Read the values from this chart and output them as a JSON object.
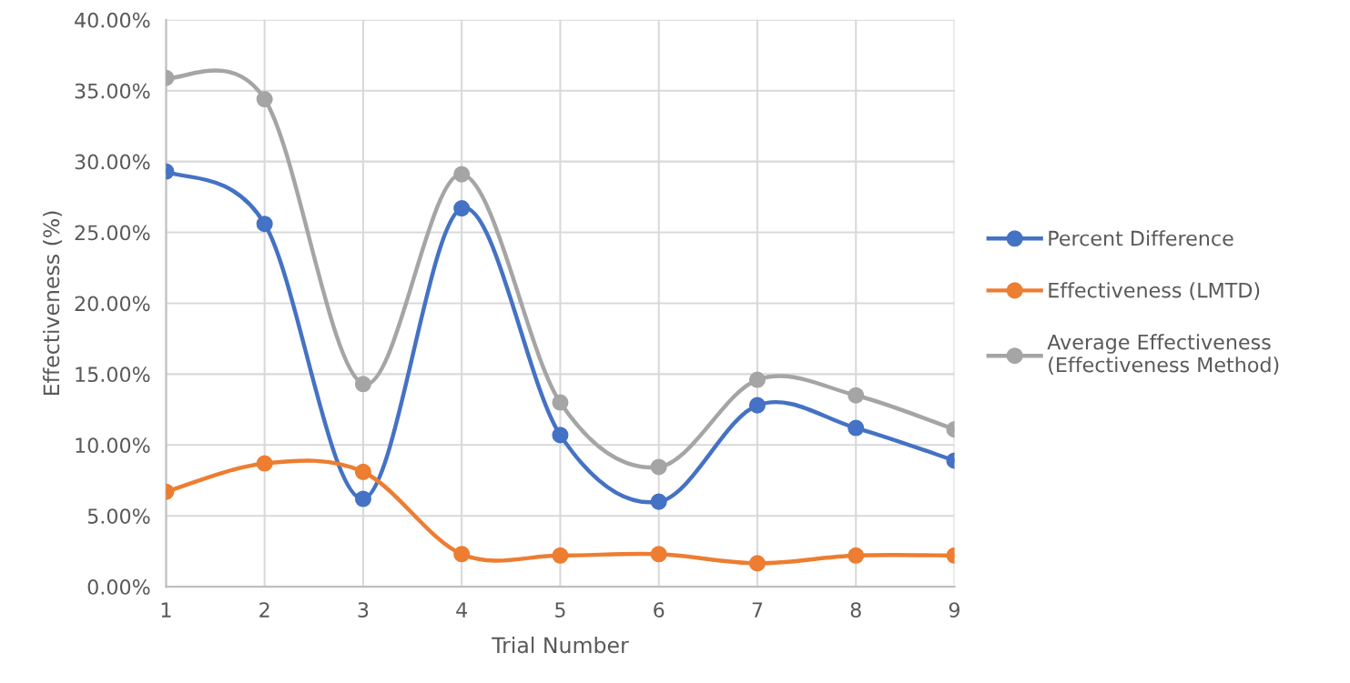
{
  "chart_data": {
    "type": "line",
    "xlabel": "Trial Number",
    "ylabel": "Effectiveness (%)",
    "categories": [
      "1",
      "2",
      "3",
      "4",
      "5",
      "6",
      "7",
      "8",
      "9"
    ],
    "series": [
      {
        "name": "Percent Difference",
        "color": "#4472c4",
        "values": [
          29.3,
          25.6,
          6.2,
          26.7,
          10.7,
          6.0,
          12.8,
          11.2,
          8.9
        ]
      },
      {
        "name": "Effectiveness (LMTD)",
        "color": "#ed7d31",
        "values": [
          6.7,
          8.7,
          8.1,
          2.3,
          2.2,
          2.3,
          1.65,
          2.2,
          2.2
        ]
      },
      {
        "name": "Average Effectiveness\n(Effectiveness Method)",
        "color": "#a5a5a5",
        "values": [
          35.9,
          34.4,
          14.3,
          29.1,
          13.0,
          8.45,
          14.6,
          13.5,
          11.1
        ]
      }
    ],
    "ylim": [
      0,
      40
    ],
    "yticks": [
      {
        "value": 0,
        "label": "0.00%"
      },
      {
        "value": 5,
        "label": "5.00%"
      },
      {
        "value": 10,
        "label": "10.00%"
      },
      {
        "value": 15,
        "label": "15.00%"
      },
      {
        "value": 20,
        "label": "20.00%"
      },
      {
        "value": 25,
        "label": "25.00%"
      },
      {
        "value": 30,
        "label": "30.00%"
      },
      {
        "value": 35,
        "label": "35.00%"
      },
      {
        "value": 40,
        "label": "40.00%"
      }
    ],
    "grid": true,
    "legend": "right",
    "marker": "circle",
    "line_style": "solid"
  }
}
